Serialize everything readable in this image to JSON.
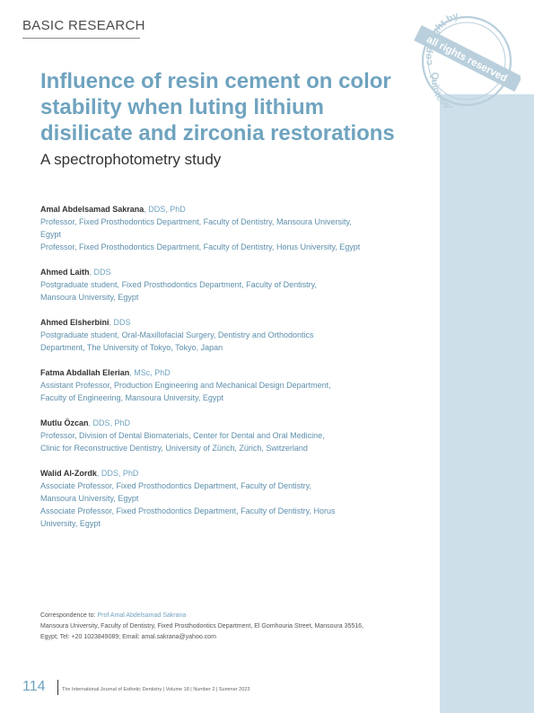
{
  "section_label": "BASIC RESEARCH",
  "stamp": {
    "ring_text": "copyright by",
    "band_text": "all rights reserved",
    "bottom_text": "Quintessenz",
    "color": "#b9cfdc"
  },
  "article": {
    "title_lines": [
      "Influence of resin cement on color",
      "stability when luting lithium",
      "disilicate and zirconia restorations"
    ],
    "subtitle": "A spectrophotometry study"
  },
  "authors": [
    {
      "name": "Amal Abdelsamad Sakrana",
      "degrees": ", DDS, PhD",
      "affiliations": [
        "Professor, Fixed Prosthodontics Department, Faculty of Dentistry, Mansoura University,",
        "Egypt",
        "Professor, Fixed Prosthodontics Department, Faculty of Dentistry, Horus University, Egypt"
      ]
    },
    {
      "name": "Ahmed Laith",
      "degrees": ", DDS",
      "affiliations": [
        "Postgraduate student, Fixed Prosthodontics Department, Faculty of Dentistry,",
        "Mansoura University, Egypt"
      ]
    },
    {
      "name": "Ahmed Elsherbini",
      "degrees": ", DDS",
      "affiliations": [
        "Postgraduate student, Oral-Maxillofacial Surgery, Dentistry and Orthodontics",
        "Department, The University of Tokyo, Tokyo, Japan"
      ]
    },
    {
      "name": "Fatma Abdallah Elerian",
      "degrees": ", MSc, PhD",
      "affiliations": [
        "Assistant Professor, Production Engineering and Mechanical Design Department,",
        "Faculty of Engineering, Mansoura University, Egypt"
      ]
    },
    {
      "name": "Mutlu Özcan",
      "degrees": ", DDS, PhD",
      "affiliations": [
        "Professor, Division of Dental Biomaterials, Center for Dental and Oral Medicine,",
        "Clinic for Reconstructive Dentistry, University of Zürich, Zürich, Switzerland"
      ]
    },
    {
      "name": "Walid Al-Zordk",
      "degrees": ", DDS, PhD",
      "affiliations": [
        "Associate Professor, Fixed Prosthodontics Department, Faculty of Dentistry,",
        "Mansoura University, Egypt",
        "Associate Professor, Fixed Prosthodontics Department, Faculty of Dentistry, Horus",
        "University, Egypt"
      ]
    }
  ],
  "correspondence": {
    "label": "Correspondence to: ",
    "name": "Prof Amal Abdelsamad Sakrana",
    "line1": "Mansoura University, Faculty of Dentistry, Fixed Prosthodontics Department, El Gomhouria Street, Mansoura 35516,",
    "line2": "Egypt; Tel: +20 1023849089; Email: amal.sakrana@yahoo.com"
  },
  "footer": {
    "page_number": "114",
    "journal": "The International Journal of Esthetic Dentistry | Volume 18 | Number 2 | Summer 2023"
  },
  "colors": {
    "accent": "#6fa3bf",
    "band": "#cde0ea"
  }
}
